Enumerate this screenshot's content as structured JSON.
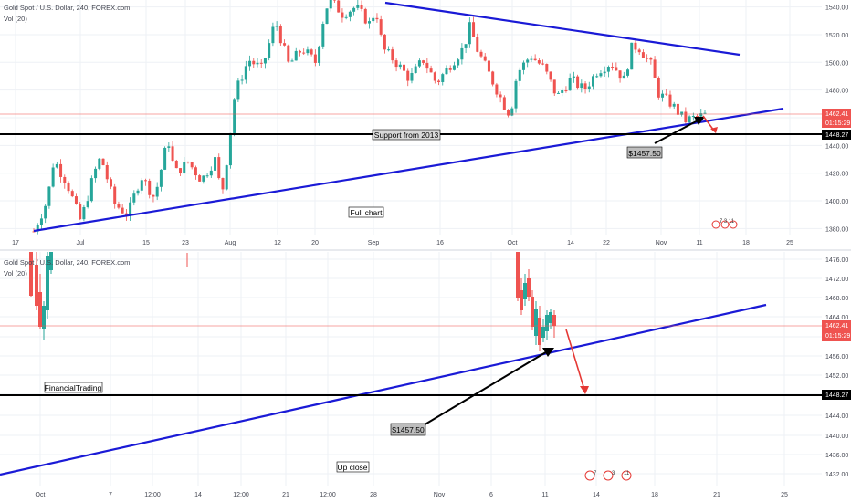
{
  "chart_data": [
    {
      "type": "candlestick",
      "title": "Gold Spot / U.S. Dollar, 240, FOREX.com",
      "volume_label": "Vol (20)",
      "x_ticks": [
        "17",
        "Jul",
        "15",
        "23",
        "Aug",
        "12",
        "20",
        "Sep",
        "16",
        "Oct",
        "14",
        "22",
        "Nov",
        "11",
        "18",
        "25"
      ],
      "y_ticks": [
        "1540.00",
        "1520.00",
        "1500.00",
        "1480.00",
        "1460.00",
        "1440.00",
        "1420.00",
        "1400.00",
        "1380.00"
      ],
      "ylim": [
        1375,
        1545
      ],
      "last_price": "1462.41",
      "countdown": "01:15:29",
      "horizontal_level": "1448.27",
      "annotations": [
        "Support from 2013",
        "$1457.50",
        "Full chart"
      ],
      "event_badge": "7 3 11",
      "price_path": [
        [
          0.0,
          1378
        ],
        [
          0.02,
          1400
        ],
        [
          0.03,
          1430
        ],
        [
          0.05,
          1412
        ],
        [
          0.07,
          1385
        ],
        [
          0.09,
          1420
        ],
        [
          0.1,
          1432
        ],
        [
          0.12,
          1398
        ],
        [
          0.14,
          1390
        ],
        [
          0.16,
          1418
        ],
        [
          0.18,
          1402
        ],
        [
          0.2,
          1445
        ],
        [
          0.21,
          1420
        ],
        [
          0.23,
          1428
        ],
        [
          0.25,
          1415
        ],
        [
          0.27,
          1430
        ],
        [
          0.28,
          1404
        ],
        [
          0.29,
          1438
        ],
        [
          0.3,
          1478
        ],
        [
          0.32,
          1502
        ],
        [
          0.34,
          1495
        ],
        [
          0.36,
          1530
        ],
        [
          0.38,
          1498
        ],
        [
          0.4,
          1510
        ],
        [
          0.42,
          1500
        ],
        [
          0.43,
          1528
        ],
        [
          0.44,
          1546
        ],
        [
          0.46,
          1535
        ],
        [
          0.48,
          1540
        ],
        [
          0.5,
          1528
        ],
        [
          0.51,
          1538
        ],
        [
          0.52,
          1510
        ],
        [
          0.54,
          1500
        ],
        [
          0.56,
          1488
        ],
        [
          0.58,
          1502
        ],
        [
          0.6,
          1485
        ],
        [
          0.62,
          1498
        ],
        [
          0.64,
          1510
        ],
        [
          0.65,
          1526
        ],
        [
          0.66,
          1510
        ],
        [
          0.68,
          1490
        ],
        [
          0.7,
          1470
        ],
        [
          0.71,
          1462
        ],
        [
          0.72,
          1492
        ],
        [
          0.74,
          1505
        ],
        [
          0.76,
          1496
        ],
        [
          0.78,
          1475
        ],
        [
          0.8,
          1488
        ],
        [
          0.82,
          1480
        ],
        [
          0.84,
          1494
        ],
        [
          0.86,
          1500
        ],
        [
          0.88,
          1487
        ],
        [
          0.89,
          1510
        ],
        [
          0.9,
          1512
        ],
        [
          0.92,
          1498
        ],
        [
          0.93,
          1478
        ],
        [
          0.95,
          1470
        ],
        [
          0.97,
          1458
        ],
        [
          1.0,
          1462
        ]
      ]
    },
    {
      "type": "candlestick",
      "title": "Gold Spot / U.S. Dollar, 240, FOREX.com",
      "volume_label": "Vol (20)",
      "x_ticks": [
        "Oct",
        "7",
        "12:00",
        "14",
        "12:00",
        "21",
        "12:00",
        "28",
        "Nov",
        "6",
        "11",
        "14",
        "18",
        "21",
        "25"
      ],
      "y_ticks": [
        "1476.00",
        "1472.00",
        "1468.00",
        "1464.00",
        "1460.00",
        "1456.00",
        "1452.00",
        "1448.00",
        "1444.00",
        "1440.00",
        "1436.00",
        "1432.00"
      ],
      "ylim": [
        1430,
        1478
      ],
      "last_price": "1462.41",
      "countdown": "01:15:29",
      "horizontal_level": "1448.27",
      "annotations": [
        "FinancialTrading",
        "$1457.50",
        "Up close"
      ],
      "event_badges": [
        "7",
        "3",
        "11"
      ]
    }
  ],
  "colors": {
    "up": "#26a69a",
    "down": "#ef5350",
    "trendline": "#1a1ad6",
    "support": "#000000",
    "arrow_black": "#000000",
    "arrow_red": "#e53935",
    "price_label_bg": "#ef5350",
    "level_label_bg": "#000000",
    "grid": "#eef1f5",
    "axis_text": "#434651"
  }
}
